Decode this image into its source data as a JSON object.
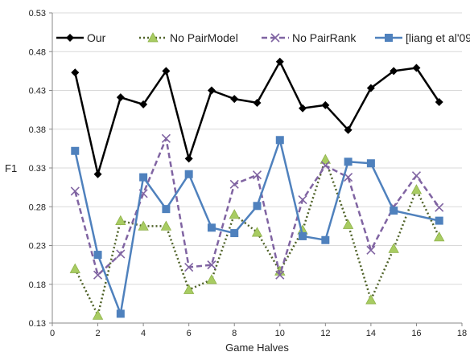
{
  "chart_data": {
    "type": "line",
    "xlabel": "Game Halves",
    "ylabel": "F1",
    "xlim": [
      0,
      18
    ],
    "ylim": [
      0.13,
      0.53
    ],
    "xticks": [
      "0",
      "2",
      "4",
      "6",
      "8",
      "10",
      "12",
      "14",
      "16",
      "18"
    ],
    "yticks": [
      "0.13",
      "0.18",
      "0.23",
      "0.28",
      "0.33",
      "0.38",
      "0.43",
      "0.48",
      "0.53"
    ],
    "grid": "horizontal",
    "legend_position": "top",
    "x": [
      1,
      2,
      3,
      4,
      5,
      6,
      7,
      8,
      9,
      10,
      11,
      12,
      13,
      14,
      15,
      16,
      17
    ],
    "series": [
      {
        "name": "Our",
        "color": "#000000",
        "marker": "diamond",
        "line": "solid",
        "values": [
          0.453,
          0.322,
          0.421,
          0.412,
          0.455,
          0.342,
          0.43,
          0.419,
          0.414,
          0.467,
          0.407,
          0.411,
          0.379,
          0.433,
          0.455,
          0.459,
          0.415
        ]
      },
      {
        "name": "No PairModel",
        "color": "#4f6228",
        "marker": "triangle",
        "line": "dotted",
        "values": [
          0.2,
          0.14,
          0.262,
          0.255,
          0.255,
          0.173,
          0.186,
          0.27,
          0.247,
          0.197,
          0.25,
          0.341,
          0.257,
          0.16,
          0.226,
          0.302,
          0.241
        ]
      },
      {
        "name": "No PairRank",
        "color": "#8064a2",
        "marker": "x",
        "line": "dashed",
        "values": [
          0.3,
          0.192,
          0.219,
          0.297,
          0.368,
          0.202,
          0.205,
          0.309,
          0.321,
          0.192,
          0.289,
          0.333,
          0.318,
          0.224,
          0.28,
          0.32,
          0.279
        ]
      },
      {
        "name": "[liang et al'09]",
        "color": "#4f81bd",
        "marker": "square",
        "line": "solid",
        "values": [
          0.352,
          0.218,
          0.142,
          0.318,
          0.277,
          0.322,
          0.253,
          0.246,
          0.281,
          0.366,
          0.242,
          0.237,
          0.338,
          0.336,
          0.275,
          null,
          0.262
        ]
      }
    ]
  }
}
